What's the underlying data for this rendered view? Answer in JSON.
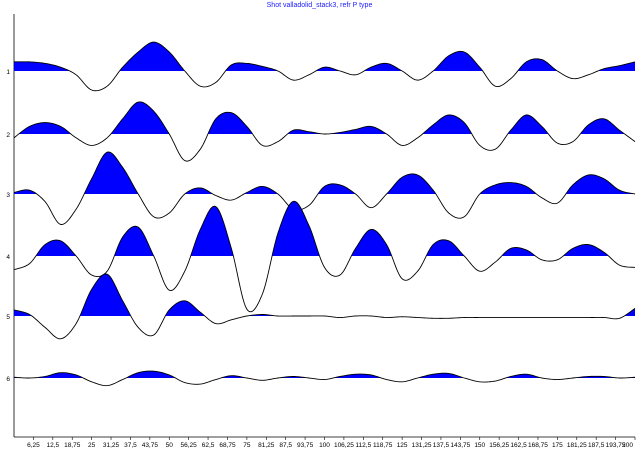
{
  "chart_data": {
    "type": "line",
    "title": "Shot valladolid_stack3, refr P type",
    "xlabel": "",
    "ylabel": "",
    "xlim": [
      0,
      200
    ],
    "x_ticks": [
      "6,25",
      "12,5",
      "18,75",
      "25",
      "31,25",
      "37,5",
      "43,75",
      "50",
      "56,25",
      "62,5",
      "68,75",
      "75",
      "81,25",
      "87,5",
      "93,75",
      "100",
      "106,25",
      "112,5",
      "118,75",
      "125",
      "131,25",
      "137,5",
      "143,75",
      "150",
      "156,25",
      "162,5",
      "168,75",
      "175",
      "181,25",
      "187,5",
      "193,75",
      "200"
    ],
    "grid": false,
    "fill_positive": true,
    "fill_color": "#0000ff",
    "line_color": "#000000",
    "series": [
      {
        "name": "1",
        "x": [
          0,
          5,
          10,
          15,
          20,
          25,
          30,
          35,
          40,
          45,
          50,
          55,
          60,
          65,
          70,
          75,
          80,
          85,
          90,
          95,
          100,
          105,
          110,
          115,
          120,
          125,
          130,
          135,
          140,
          145,
          150,
          155,
          160,
          165,
          170,
          175,
          180,
          185,
          190,
          195,
          200
        ],
        "values": [
          0.12,
          0.12,
          0.1,
          0.05,
          -0.05,
          -0.25,
          -0.2,
          0.05,
          0.25,
          0.38,
          0.25,
          0,
          -0.2,
          -0.15,
          0.08,
          0.1,
          0.06,
          0,
          -0.12,
          -0.05,
          0.05,
          0,
          -0.05,
          0.05,
          0.1,
          0,
          -0.12,
          0,
          0.2,
          0.25,
          0.05,
          -0.2,
          -0.1,
          0.12,
          0.15,
          0,
          -0.1,
          -0.05,
          0.03,
          0.07,
          0.12
        ]
      },
      {
        "name": "2",
        "x": [
          0,
          5,
          10,
          15,
          20,
          25,
          30,
          35,
          40,
          45,
          50,
          55,
          60,
          65,
          70,
          75,
          80,
          85,
          90,
          95,
          100,
          105,
          110,
          115,
          120,
          125,
          130,
          135,
          140,
          145,
          150,
          155,
          160,
          165,
          170,
          175,
          180,
          185,
          190,
          195,
          200
        ],
        "values": [
          -0.05,
          0.1,
          0.15,
          0.1,
          -0.05,
          -0.15,
          -0.05,
          0.2,
          0.42,
          0.3,
          0,
          -0.35,
          -0.2,
          0.2,
          0.28,
          0.1,
          -0.15,
          -0.1,
          0.05,
          0.03,
          0,
          0.02,
          0.06,
          0.1,
          0,
          -0.15,
          -0.05,
          0.12,
          0.25,
          0.15,
          -0.15,
          -0.2,
          0.05,
          0.25,
          0.1,
          -0.12,
          -0.1,
          0.12,
          0.2,
          0.05,
          -0.1
        ]
      },
      {
        "name": "3",
        "x": [
          0,
          5,
          10,
          15,
          20,
          25,
          30,
          35,
          40,
          45,
          50,
          55,
          60,
          65,
          70,
          75,
          80,
          85,
          90,
          95,
          100,
          105,
          110,
          115,
          120,
          125,
          130,
          135,
          140,
          145,
          150,
          155,
          160,
          165,
          170,
          175,
          180,
          185,
          190,
          195,
          200
        ],
        "values": [
          0.02,
          0.05,
          -0.1,
          -0.4,
          -0.2,
          0.2,
          0.55,
          0.35,
          0,
          -0.3,
          -0.25,
          0,
          0.08,
          -0.02,
          -0.08,
          0.02,
          0.1,
          0,
          -0.2,
          -0.15,
          0.1,
          0.12,
          0,
          -0.18,
          0,
          0.22,
          0.25,
          0.05,
          -0.25,
          -0.3,
          0,
          0.12,
          0.15,
          0.1,
          -0.05,
          -0.12,
          0.12,
          0.25,
          0.2,
          0.05,
          0
        ]
      },
      {
        "name": "4",
        "x": [
          0,
          5,
          10,
          15,
          20,
          25,
          30,
          35,
          40,
          45,
          50,
          55,
          60,
          65,
          70,
          75,
          80,
          85,
          90,
          95,
          100,
          105,
          110,
          115,
          120,
          125,
          130,
          135,
          140,
          145,
          150,
          155,
          160,
          165,
          170,
          175,
          180,
          185,
          190,
          195,
          200
        ],
        "values": [
          -0.18,
          -0.1,
          0.15,
          0.2,
          0,
          -0.25,
          -0.2,
          0.25,
          0.38,
          0,
          -0.45,
          -0.2,
          0.35,
          0.65,
          0.1,
          -0.7,
          -0.5,
          0.3,
          0.72,
          0.4,
          -0.15,
          -0.25,
          0.1,
          0.35,
          0.15,
          -0.3,
          -0.2,
          0.15,
          0.2,
          0,
          -0.2,
          -0.08,
          0.1,
          0.08,
          -0.05,
          -0.05,
          0.1,
          0.15,
          0.05,
          -0.12,
          -0.15
        ]
      },
      {
        "name": "5",
        "x": [
          0,
          5,
          10,
          15,
          20,
          25,
          30,
          35,
          40,
          45,
          50,
          55,
          60,
          65,
          70,
          75,
          80,
          85,
          90,
          95,
          100,
          105,
          110,
          115,
          120,
          125,
          130,
          135,
          140,
          145,
          150,
          155,
          160,
          165,
          170,
          175,
          180,
          185,
          190,
          195,
          200
        ],
        "values": [
          0.08,
          0.02,
          -0.15,
          -0.3,
          -0.1,
          0.35,
          0.55,
          0.2,
          -0.15,
          -0.25,
          0.08,
          0.2,
          0.05,
          -0.1,
          -0.05,
          0,
          0.02,
          0,
          0,
          0,
          0,
          -0.02,
          0,
          0,
          -0.02,
          -0.01,
          -0.02,
          -0.03,
          -0.03,
          -0.02,
          -0.02,
          -0.02,
          -0.02,
          -0.02,
          -0.02,
          -0.02,
          -0.02,
          -0.02,
          -0.02,
          -0.03,
          0.1
        ]
      },
      {
        "name": "6",
        "x": [
          0,
          5,
          10,
          15,
          20,
          25,
          30,
          35,
          40,
          45,
          50,
          55,
          60,
          65,
          70,
          75,
          80,
          85,
          90,
          95,
          100,
          105,
          110,
          115,
          120,
          125,
          130,
          135,
          140,
          145,
          150,
          155,
          160,
          165,
          170,
          175,
          180,
          185,
          190,
          195,
          200
        ],
        "values": [
          0.01,
          0.0,
          0.02,
          0.07,
          0.04,
          -0.05,
          -0.1,
          -0.02,
          0.07,
          0.09,
          0.04,
          -0.06,
          -0.08,
          -0.02,
          0.03,
          0,
          -0.03,
          0.0,
          0.02,
          0.0,
          -0.02,
          0.02,
          0.05,
          0.04,
          -0.02,
          -0.05,
          0.0,
          0.05,
          0.06,
          0.0,
          -0.05,
          -0.04,
          0.02,
          0.05,
          0.0,
          -0.02,
          0.0,
          0.02,
          0.02,
          0.0,
          0.01
        ]
      }
    ]
  }
}
